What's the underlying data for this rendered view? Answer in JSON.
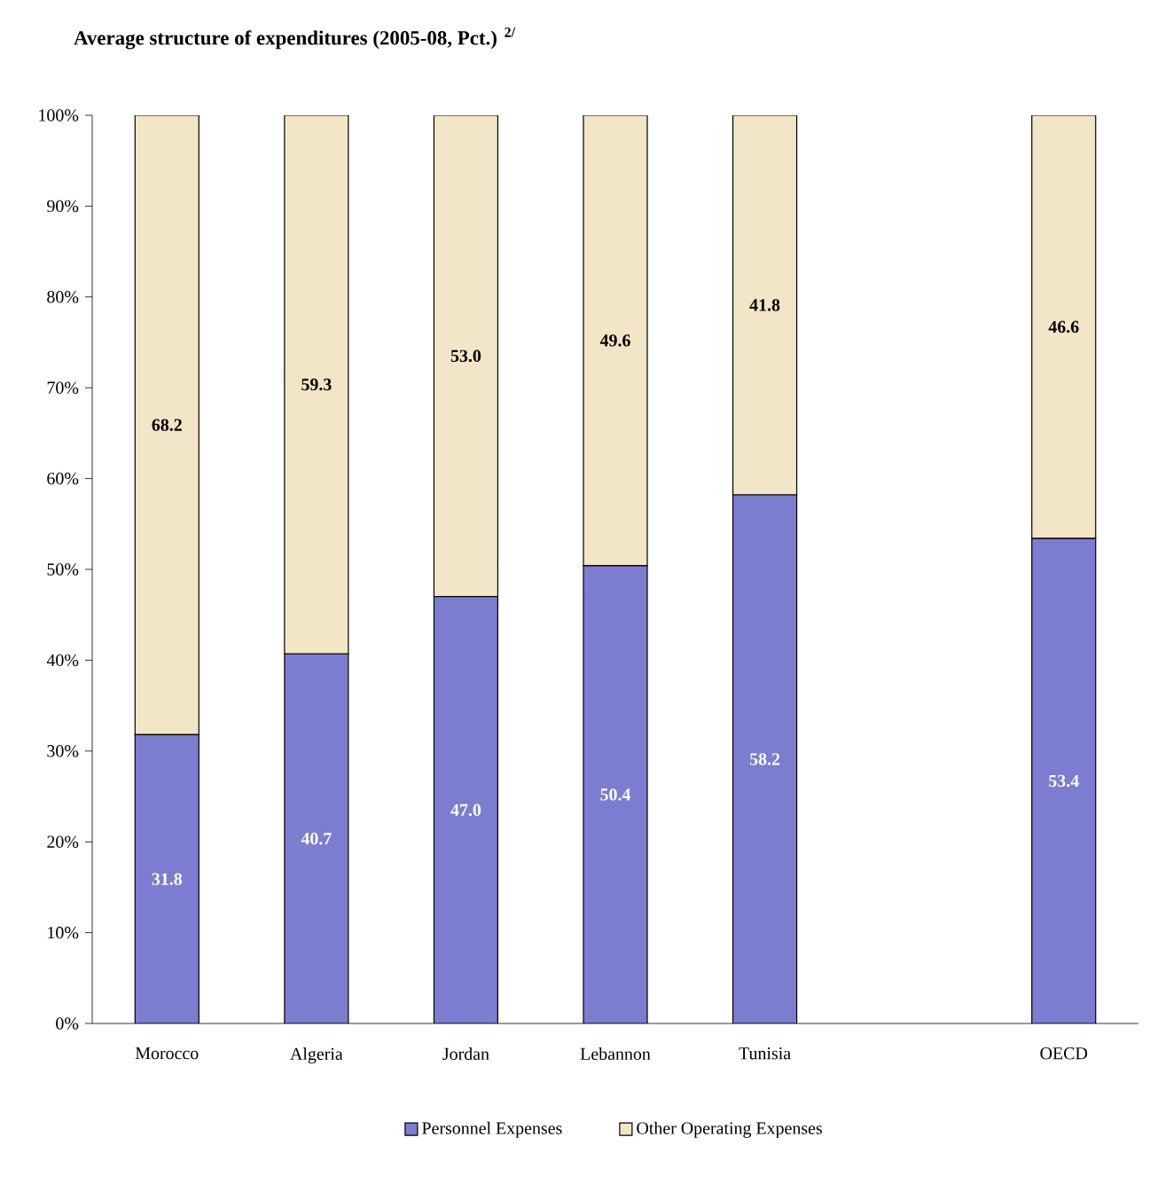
{
  "chart_data": {
    "type": "bar",
    "stacked": true,
    "title": "Average structure of expenditures (2005-08, Pct.) $^{2/}$",
    "categories": [
      "Morocco",
      "Algeria",
      "Jordan",
      "Lebannon",
      "Tunisia",
      null,
      "OECD"
    ],
    "series": [
      {
        "name": "Personnel Expenses",
        "color": "#7c7cd0",
        "values": [
          31.8,
          40.7,
          47.0,
          50.4,
          58.2,
          null,
          53.4
        ],
        "value_labels": [
          "31.8",
          "40.7",
          "47.0",
          "50.4",
          "58.2",
          null,
          "53.4"
        ]
      },
      {
        "name": "Other Operating Expenses",
        "color": "#f3e6c6",
        "values": [
          68.2,
          59.3,
          53.0,
          49.6,
          41.8,
          null,
          46.6
        ],
        "value_labels": [
          "68.2",
          "59.3",
          "53.0",
          "49.6",
          "41.8",
          null,
          "46.6"
        ]
      }
    ],
    "ylim": [
      0,
      100
    ],
    "yticks": [
      {
        "value": 0,
        "label": "0%"
      },
      {
        "value": 10,
        "label": "10%"
      },
      {
        "value": 20,
        "label": "20%"
      },
      {
        "value": 30,
        "label": "30%"
      },
      {
        "value": 40,
        "label": "40%"
      },
      {
        "value": 50,
        "label": "50%"
      },
      {
        "value": 60,
        "label": "60%"
      },
      {
        "value": 70,
        "label": "70%"
      },
      {
        "value": 80,
        "label": "80%"
      },
      {
        "value": 90,
        "label": "90%"
      },
      {
        "value": 100,
        "label": "100%"
      }
    ],
    "grid": false,
    "legend": "bottom"
  }
}
